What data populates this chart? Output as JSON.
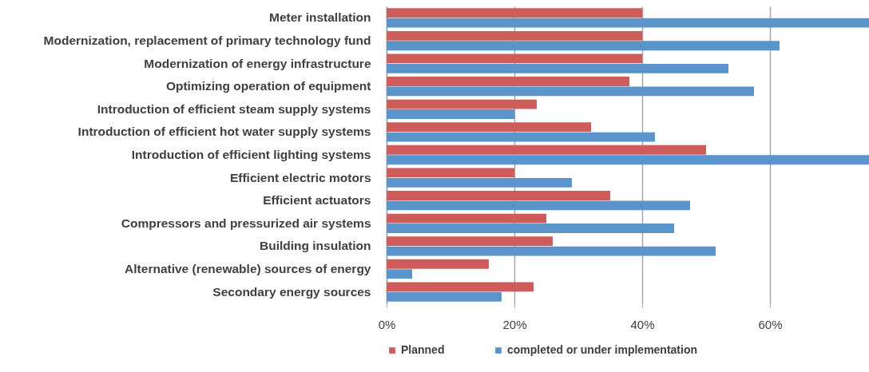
{
  "chart_data": {
    "type": "bar",
    "orientation": "horizontal",
    "categories": [
      "Meter installation",
      "Modernization, replacement of primary technology fund",
      "Modernization of energy infrastructure",
      "Optimizing operation of equipment",
      "Introduction of efficient steam supply systems",
      "Introduction of efficient hot water supply systems",
      "Introduction of efficient lighting systems",
      "Efficient electric motors",
      "Efficient actuators",
      "Compressors and pressurized air systems",
      "Building insulation",
      "Alternative (renewable) sources of energy",
      "Secondary energy sources"
    ],
    "series": [
      {
        "name": "Planned",
        "color": "#cd5c5a",
        "values": [
          40,
          40,
          40,
          38,
          23.5,
          32,
          50,
          20,
          35,
          25,
          26,
          16,
          23
        ]
      },
      {
        "name": "completed or under implementation",
        "color": "#5b93cb",
        "values": [
          75.5,
          61.5,
          53.5,
          57.5,
          20,
          42,
          75.5,
          29,
          47.5,
          45,
          51.5,
          4,
          18
        ]
      }
    ],
    "xlim": [
      0,
      75.5
    ],
    "xticks": [
      {
        "value": 0,
        "label": "0%"
      },
      {
        "value": 20,
        "label": "20%"
      },
      {
        "value": 40,
        "label": "40%"
      },
      {
        "value": 60,
        "label": "60%"
      }
    ],
    "grid": "x",
    "legend": "bottom"
  }
}
